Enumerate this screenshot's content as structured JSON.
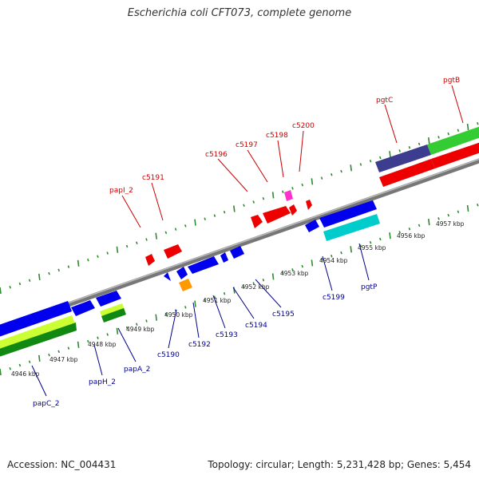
{
  "title": "Escherichia coli CFT073, complete genome",
  "footer": {
    "accession": "Accession: NC_004431",
    "summary": "Topology: circular; Length: 5,231,428 bp; Genes: 5,454"
  },
  "colors": {
    "backbone": "#8a8a8a",
    "forward_tick": "#2e8b2e",
    "reverse_tick": "#2e8b2e",
    "top_label": "#cc0000",
    "bottom_label": "#00008b",
    "gene_red": "#ff0000",
    "gene_blue": "#0000ee",
    "gene_magenta": "#ff33cc",
    "gene_orange": "#ff9900",
    "gene_cyan": "#00cccc",
    "gene_navy": "#3d3d8f",
    "gene_green": "#33cc33",
    "gene_lightgreen": "#ccff33",
    "gene_darkgreen": "#118811"
  },
  "scale_labels": [
    "4946 kbp",
    "4947 kbp",
    "4948 kbp",
    "4949 kbp",
    "4950 kbp",
    "4951 kbp",
    "4952 kbp",
    "4953 kbp",
    "4954 kbp",
    "4955 kbp",
    "4956 kbp",
    "4957 kbp"
  ],
  "forward_genes": [
    "papI_2",
    "c5191",
    "c5196",
    "c5197",
    "c5198",
    "c5200",
    "pgtC",
    "pgtB"
  ],
  "reverse_genes": [
    "papC_2",
    "papH_2",
    "papA_2",
    "c5190",
    "c5192",
    "c5193",
    "c5194",
    "c5195",
    "c5199",
    "pgtP"
  ]
}
